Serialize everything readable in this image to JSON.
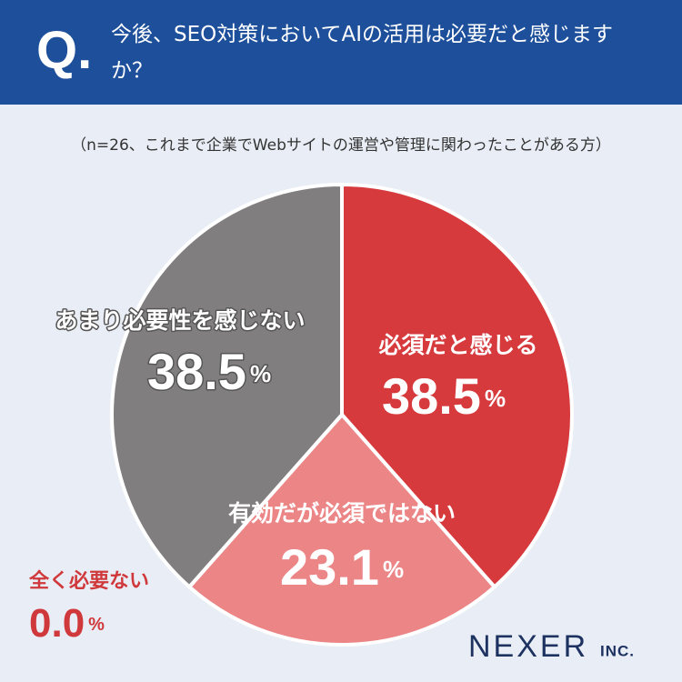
{
  "header": {
    "mark": "Q.",
    "question": "今後、SEO対策においてAIの活用は必要だと感じますか？"
  },
  "chart_data": {
    "type": "pie",
    "subtitle": "（n=26、これまで企業でWebサイトの運営や管理に関わったことがある方）",
    "categories": [
      "必須だと感じる",
      "有効だが必須ではない",
      "全く必要ない",
      "あまり必要性を感じない"
    ],
    "values": [
      38.5,
      23.1,
      0.0,
      38.5
    ],
    "value_labels": [
      "38.5%",
      "23.1%",
      "0.0%",
      "38.5%"
    ],
    "colors": [
      "#d63a3d",
      "#ec8586",
      "#c8323a",
      "#807e7f"
    ]
  },
  "brand": {
    "name": "NEXER",
    "suffix": "INC."
  }
}
